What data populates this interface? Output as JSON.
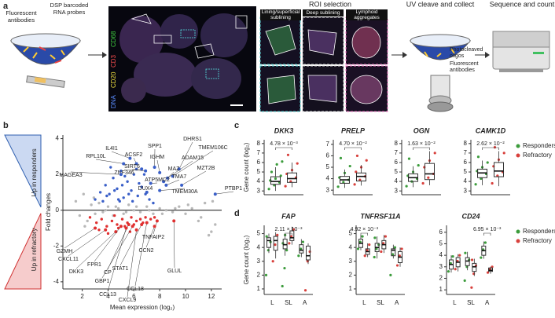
{
  "panel_labels": [
    "a",
    "b",
    "c",
    "d"
  ],
  "workflow": {
    "steps": [
      "ROI selection",
      "UV cleave and collect",
      "Sequence and count"
    ],
    "probe_labels": [
      "Fluorescent antibodies",
      "DSP barcoded RNA probes"
    ],
    "stains": [
      {
        "text": "DNA",
        "color": "#5a8cff"
      },
      {
        "text": "CD20",
        "color": "#f0e040"
      },
      {
        "text": "CD3",
        "color": "#ff5050"
      },
      {
        "text": "CD68",
        "color": "#40d040"
      }
    ],
    "roi_types": [
      "Lining/superficial sublining",
      "Deep sublining",
      "Lymphoid aggregates"
    ],
    "collect_labels": [
      "Photocleaved oligos",
      "Fluorescent antibodies"
    ]
  },
  "chart_data": [
    {
      "type": "scatter",
      "xlabel": "Mean expression (log₂)",
      "ylabel": "Fold changes",
      "side_labels": [
        "Up in responders",
        "Up in refractory"
      ],
      "side_colors": [
        "#3060b0",
        "#d03030"
      ],
      "xlim": [
        0.5,
        12.8
      ],
      "ylim": [
        -4.4,
        4.2
      ],
      "xticks": [
        2,
        4,
        6,
        8,
        10,
        12
      ],
      "yticks": [
        -4,
        -2,
        0,
        2,
        4
      ],
      "series": [
        {
          "color": "#3a5fc8",
          "x": [
            3.0,
            3.4,
            3.8,
            4.1,
            4.4,
            4.7,
            5.0,
            5.2,
            5.5,
            5.8,
            6.0,
            6.3,
            6.6,
            6.9,
            7.2,
            3.6,
            4.2,
            4.8,
            5.3,
            5.9,
            6.4,
            7.0,
            4.5,
            5.1,
            5.6,
            6.2,
            3.9,
            4.9,
            6.8,
            7.5
          ],
          "values": [
            0.6,
            1.0,
            1.4,
            0.9,
            1.8,
            1.2,
            2.2,
            0.7,
            1.6,
            1.1,
            2.0,
            0.8,
            1.3,
            0.9,
            0.6,
            0.5,
            2.4,
            0.6,
            1.9,
            0.5,
            1.5,
            1.0,
            1.1,
            1.4,
            0.9,
            2.3,
            0.8,
            0.5,
            2.0,
            0.4
          ]
        },
        {
          "color": "#e03030",
          "x": [
            2.6,
            3.1,
            3.5,
            3.9,
            4.3,
            4.7,
            5.1,
            5.5,
            5.8,
            6.2,
            6.5,
            6.9,
            7.3,
            3.3,
            4.0,
            4.8,
            5.3,
            6.0,
            6.7,
            7.6,
            4.5,
            5.7
          ],
          "values": [
            -0.4,
            -0.7,
            -0.5,
            -0.9,
            -0.6,
            -0.8,
            -0.5,
            -0.7,
            -0.4,
            -0.6,
            -0.5,
            -0.4,
            -0.5,
            -1.1,
            -1.3,
            -1.0,
            -0.9,
            -0.8,
            -0.7,
            -0.4,
            -0.3,
            -1.2
          ]
        },
        {
          "color": "#b8b8b8",
          "x": [
            1.5,
            1.8,
            2.1,
            2.4,
            2.7,
            3.0,
            3.3,
            3.6,
            4.0,
            4.4,
            4.8,
            5.2,
            5.6,
            6.0,
            6.5,
            7.0,
            7.5,
            8.0,
            8.5,
            9.0,
            9.5,
            10.0,
            10.5,
            11.0,
            11.5,
            12.0,
            2.2,
            2.9,
            3.8,
            4.6,
            5.4,
            6.2,
            7.2,
            8.2,
            9.2,
            10.2,
            11.2,
            12.3,
            11.8,
            12.1
          ],
          "values": [
            0.5,
            -0.3,
            0.9,
            -0.6,
            0.3,
            -0.2,
            0.4,
            -0.1,
            0.2,
            -0.3,
            0.1,
            -0.2,
            0.3,
            0.0,
            -0.1,
            0.2,
            -0.2,
            0.1,
            0.0,
            -0.1,
            0.2,
            -0.2,
            0.1,
            -0.6,
            0.4,
            -1.2,
            -0.9,
            0.7,
            0.0,
            0.2,
            -0.1,
            0.2,
            0.0,
            -0.2,
            0.1,
            0.3,
            -0.4,
            -0.8,
            -1.4,
            0.5
          ]
        }
      ],
      "annotations": [
        {
          "text": "DHRS1",
          "x": 9.5,
          "y": 2.3
        },
        {
          "text": "TMEM106C",
          "x": 9.0,
          "y": 1.9
        },
        {
          "text": "SPP1",
          "x": 7.6,
          "y": 2.4
        },
        {
          "text": "IL4I1",
          "x": 5.7,
          "y": 2.9
        },
        {
          "text": "ACSF2",
          "x": 6.2,
          "y": 2.6
        },
        {
          "text": "RPL10L",
          "x": 5.2,
          "y": 2.6
        },
        {
          "text": "SIRT6",
          "x": 6.6,
          "y": 2.3
        },
        {
          "text": "IGHM",
          "x": 8.0,
          "y": 2.1
        },
        {
          "text": "ADAM15",
          "x": 8.6,
          "y": 1.8
        },
        {
          "text": "ZNF346",
          "x": 6.9,
          "y": 2.2
        },
        {
          "text": "MZT2B",
          "x": 9.7,
          "y": 1.4
        },
        {
          "text": "MAGEA3",
          "x": 5.0,
          "y": 2.0
        },
        {
          "text": "MAZ",
          "x": 8.3,
          "y": 1.6
        },
        {
          "text": "TMA7",
          "x": 8.5,
          "y": 1.4
        },
        {
          "text": "ATP5MC2",
          "x": 7.3,
          "y": 1.5
        },
        {
          "text": "DUX4",
          "x": 7.0,
          "y": 1.0
        },
        {
          "text": "TMEM30A",
          "x": 8.0,
          "y": 1.1
        },
        {
          "text": "PTBP1",
          "x": 12.3,
          "y": 0.9
        },
        {
          "text": "GZMH",
          "x": 3.0,
          "y": -1.0
        },
        {
          "text": "CXCL11",
          "x": 3.8,
          "y": -1.1
        },
        {
          "text": "DKK3",
          "x": 4.6,
          "y": -1.2
        },
        {
          "text": "FPR1",
          "x": 5.0,
          "y": -0.9
        },
        {
          "text": "CP",
          "x": 5.6,
          "y": -0.8
        },
        {
          "text": "GBP1",
          "x": 5.9,
          "y": -0.9
        },
        {
          "text": "STAT1",
          "x": 6.6,
          "y": -0.8
        },
        {
          "text": "CCL13",
          "x": 5.4,
          "y": -1.0
        },
        {
          "text": "CXCL9",
          "x": 6.2,
          "y": -1.1
        },
        {
          "text": "CCL18",
          "x": 7.0,
          "y": -0.7
        },
        {
          "text": "TNFAIP2",
          "x": 7.8,
          "y": -0.6
        },
        {
          "text": "CCN2",
          "x": 7.6,
          "y": -0.9
        },
        {
          "text": "GLUL",
          "x": 9.1,
          "y": -0.6
        }
      ]
    },
    {
      "type": "box",
      "title": "DKK3",
      "ylabel": "Gene count (log₂)",
      "ylim": [
        2.6,
        8.4
      ],
      "yticks": [
        3,
        4,
        5,
        6,
        7,
        8
      ],
      "pvalue": {
        "text": "4.78 × 10⁻³",
        "category": 0
      },
      "series": [
        {
          "name": "Responders",
          "color": "#3c9c3c",
          "boxes": [
            {
              "low": 3.0,
              "q1": 3.7,
              "median": 4.0,
              "q3": 4.5,
              "high": 5.5,
              "points": [
                3.2,
                3.6,
                3.9,
                4.1,
                4.3,
                4.6,
                5.0,
                5.8,
                6.1
              ]
            }
          ]
        },
        {
          "name": "Refractory",
          "color": "#d8403c",
          "boxes": [
            {
              "low": 3.4,
              "q1": 3.9,
              "median": 4.3,
              "q3": 4.9,
              "high": 6.0,
              "points": [
                3.5,
                4.0,
                4.4,
                4.8,
                5.2,
                5.9,
                6.8
              ]
            }
          ]
        }
      ]
    },
    {
      "type": "box",
      "title": "PRELP",
      "ylim": [
        2.6,
        7.4
      ],
      "yticks": [
        3,
        4,
        5,
        6,
        7
      ],
      "pvalue": {
        "text": "4.70 × 10⁻²",
        "category": 0
      },
      "series": [
        {
          "name": "Responders",
          "color": "#3c9c3c",
          "boxes": [
            {
              "low": 3.2,
              "q1": 3.6,
              "median": 3.9,
              "q3": 4.2,
              "high": 4.8,
              "points": [
                3.3,
                3.7,
                3.9,
                4.1,
                4.5,
                5.1,
                5.8
              ]
            }
          ]
        },
        {
          "name": "Refractory",
          "color": "#d8403c",
          "boxes": [
            {
              "low": 3.4,
              "q1": 3.8,
              "median": 4.2,
              "q3": 4.5,
              "high": 5.2,
              "points": [
                3.5,
                3.9,
                4.2,
                4.6,
                5.0,
                5.6,
                6.0
              ]
            }
          ]
        }
      ]
    },
    {
      "type": "box",
      "title": "OGN",
      "ylim": [
        2.6,
        8.4
      ],
      "yticks": [
        3,
        4,
        5,
        6,
        7,
        8
      ],
      "pvalue": {
        "text": "1.63 × 10⁻²",
        "category": 0
      },
      "series": [
        {
          "name": "Responders",
          "color": "#3c9c3c",
          "boxes": [
            {
              "low": 3.4,
              "q1": 4.0,
              "median": 4.4,
              "q3": 4.8,
              "high": 5.6,
              "points": [
                3.5,
                4.0,
                4.3,
                4.6,
                5.0,
                5.7,
                6.4
              ]
            }
          ]
        },
        {
          "name": "Refractory",
          "color": "#d8403c",
          "boxes": [
            {
              "low": 3.6,
              "q1": 4.2,
              "median": 4.8,
              "q3": 5.9,
              "high": 7.2,
              "points": [
                3.8,
                4.4,
                4.8,
                5.5,
                6.2,
                7.0
              ]
            }
          ]
        }
      ]
    },
    {
      "type": "box",
      "title": "CAMK1D",
      "ylim": [
        2.6,
        8.4
      ],
      "yticks": [
        3,
        4,
        5,
        6,
        7,
        8
      ],
      "pvalue": {
        "text": "2.62 × 10⁻²",
        "category": 0
      },
      "legend": true,
      "series": [
        {
          "name": "Responders",
          "color": "#3c9c3c",
          "boxes": [
            {
              "low": 3.6,
              "q1": 4.4,
              "median": 4.9,
              "q3": 5.3,
              "high": 6.2,
              "points": [
                3.7,
                4.3,
                4.8,
                5.1,
                5.5,
                6.0,
                6.6
              ]
            }
          ]
        },
        {
          "name": "Refractory",
          "color": "#d8403c",
          "boxes": [
            {
              "low": 3.5,
              "q1": 4.5,
              "median": 5.1,
              "q3": 6.0,
              "high": 7.2,
              "points": [
                3.8,
                4.6,
                5.0,
                5.6,
                6.3,
                7.0,
                7.6
              ]
            }
          ]
        }
      ]
    },
    {
      "type": "box",
      "title": "FAP",
      "ylabel": "Gene count (log₂)",
      "categories": [
        "L",
        "SL",
        "A"
      ],
      "ylim": [
        0.6,
        5.6
      ],
      "yticks": [
        1,
        2,
        3,
        4,
        5
      ],
      "pvalue": {
        "text": "2.11 × 10⁻³",
        "category": 1
      },
      "series": [
        {
          "name": "Responders",
          "color": "#3c9c3c",
          "boxes": [
            {
              "low": 3.6,
              "q1": 4.0,
              "median": 4.5,
              "q3": 4.7,
              "high": 5.0,
              "points": [
                2.0,
                3.8,
                4.4,
                4.8
              ]
            },
            {
              "low": 3.4,
              "q1": 3.9,
              "median": 4.2,
              "q3": 4.6,
              "high": 5.0,
              "points": [
                1.2,
                2.5,
                3.8,
                4.3,
                4.9
              ]
            },
            {
              "low": 3.3,
              "q1": 3.6,
              "median": 3.8,
              "q3": 4.2,
              "high": 4.6,
              "points": [
                3.4,
                3.9,
                4.4
              ]
            }
          ]
        },
        {
          "name": "Refractory",
          "color": "#d8403c",
          "boxes": [
            {
              "low": 3.2,
              "q1": 3.8,
              "median": 4.5,
              "q3": 4.8,
              "high": 5.1,
              "points": [
                3.0,
                4.2,
                4.9
              ]
            },
            {
              "low": 4.2,
              "q1": 4.5,
              "median": 4.7,
              "q3": 5.2,
              "high": 5.5,
              "points": [
                4.3,
                4.8,
                5.3
              ]
            },
            {
              "low": 2.8,
              "q1": 3.1,
              "median": 3.4,
              "q3": 4.1,
              "high": 4.3,
              "points": [
                0.9,
                3.0,
                3.7
              ]
            }
          ]
        }
      ]
    },
    {
      "type": "box",
      "title": "TNFRSF11A",
      "categories": [
        "L",
        "SL",
        "A"
      ],
      "ylim": [
        0.6,
        5.6
      ],
      "yticks": [
        1,
        2,
        3,
        4,
        5
      ],
      "pvalue": {
        "text": "4.92 × 10⁻³",
        "category": 0
      },
      "series": [
        {
          "name": "Responders",
          "color": "#3c9c3c",
          "boxes": [
            {
              "low": 3.8,
              "q1": 4.0,
              "median": 4.3,
              "q3": 4.6,
              "high": 4.9,
              "points": [
                3.9,
                4.4,
                4.8
              ]
            },
            {
              "low": 3.2,
              "q1": 3.7,
              "median": 4.0,
              "q3": 4.3,
              "high": 4.8,
              "points": [
                3.3,
                3.9,
                4.2,
                4.7
              ]
            },
            {
              "low": 3.2,
              "q1": 3.4,
              "median": 3.8,
              "q3": 3.9,
              "high": 4.2,
              "points": [
                2.0,
                3.5,
                4.0
              ]
            }
          ]
        },
        {
          "name": "Refractory",
          "color": "#d8403c",
          "boxes": [
            {
              "low": 3.3,
              "q1": 3.5,
              "median": 3.7,
              "q3": 3.9,
              "high": 4.3,
              "points": [
                3.4,
                3.8,
                4.2
              ]
            },
            {
              "low": 3.6,
              "q1": 3.9,
              "median": 4.2,
              "q3": 4.5,
              "high": 4.9,
              "points": [
                3.7,
                4.3,
                4.8
              ]
            },
            {
              "low": 2.6,
              "q1": 2.9,
              "median": 3.3,
              "q3": 3.7,
              "high": 4.0,
              "points": [
                2.7,
                3.4,
                3.9
              ]
            }
          ]
        }
      ]
    },
    {
      "type": "box",
      "title": "CD24",
      "categories": [
        "L",
        "SL",
        "A"
      ],
      "ylim": [
        0.6,
        6.6
      ],
      "yticks": [
        1,
        2,
        3,
        4,
        5,
        6
      ],
      "pvalue": {
        "text": "6.95 × 10⁻³",
        "category": 2
      },
      "legend": true,
      "series": [
        {
          "name": "Responders",
          "color": "#3c9c3c",
          "boxes": [
            {
              "low": 2.5,
              "q1": 2.8,
              "median": 3.2,
              "q3": 3.6,
              "high": 4.0,
              "points": [
                2.6,
                3.3,
                3.9
              ]
            },
            {
              "low": 2.7,
              "q1": 3.1,
              "median": 3.5,
              "q3": 3.8,
              "high": 4.3,
              "points": [
                1.8,
                3.0,
                3.6,
                4.2
              ]
            },
            {
              "low": 3.7,
              "q1": 4.0,
              "median": 4.4,
              "q3": 4.8,
              "high": 5.2,
              "points": [
                3.8,
                4.5,
                5.1
              ]
            }
          ]
        },
        {
          "name": "Refractory",
          "color": "#d8403c",
          "boxes": [
            {
              "low": 2.6,
              "q1": 3.0,
              "median": 3.4,
              "q3": 3.8,
              "high": 4.1,
              "points": [
                2.8,
                3.5,
                4.0
              ]
            },
            {
              "low": 2.2,
              "q1": 2.6,
              "median": 3.0,
              "q3": 3.3,
              "high": 3.7,
              "points": [
                1.2,
                2.4,
                3.1,
                3.6
              ]
            },
            {
              "low": 2.4,
              "q1": 2.6,
              "median": 2.7,
              "q3": 2.9,
              "high": 3.0,
              "points": [
                2.5,
                2.8,
                3.0
              ]
            }
          ]
        }
      ]
    }
  ]
}
